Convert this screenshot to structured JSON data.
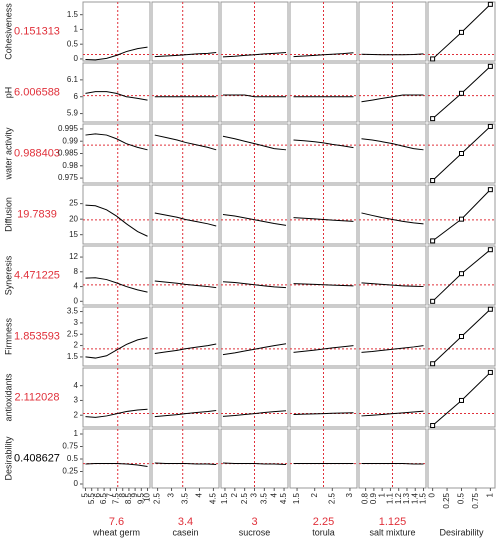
{
  "chart_data": {
    "type": "profiler",
    "highlight_color": "#e0303a",
    "line_color": "#000000",
    "factors": [
      {
        "name": "wheat germ",
        "value": 7.6,
        "xlim": [
          4.8,
          10.2
        ],
        "xticks": [
          5,
          5.5,
          6,
          6.5,
          7,
          7.5,
          8,
          8.5,
          9,
          9.5,
          10
        ],
        "grid": [
          5,
          5.8,
          6.7,
          7.5,
          8.3,
          9.2,
          10
        ]
      },
      {
        "name": "casein",
        "value": 3.4,
        "xlim": [
          2.3,
          4.7
        ],
        "xticks": [
          2.5,
          3,
          3.5,
          4,
          4.5
        ],
        "grid": [
          2.4,
          2.8,
          3.2,
          3.5,
          3.9,
          4.3,
          4.6
        ]
      },
      {
        "name": "sucrose",
        "value": 3,
        "xlim": [
          1.3,
          4.7
        ],
        "xticks": [
          1.5,
          2,
          2.5,
          3,
          3.5,
          4,
          4.5
        ],
        "grid": [
          1.4,
          2,
          2.5,
          3,
          3.5,
          4,
          4.6
        ]
      },
      {
        "name": "torula",
        "value": 2.25,
        "xlim": [
          1.3,
          3.2
        ],
        "xticks": [
          1.5,
          2,
          2.5,
          3
        ],
        "grid": [
          1.4,
          1.7,
          2,
          2.25,
          2.5,
          2.8,
          3.1
        ]
      },
      {
        "name": "salt mixture",
        "value": 1.125,
        "xlim": [
          0.72,
          1.53
        ],
        "xticks": [
          0.8,
          0.9,
          1,
          1.1,
          1.2,
          1.3,
          1.4,
          1.5
        ],
        "grid": [
          0.75,
          0.88,
          1,
          1.125,
          1.25,
          1.38,
          1.5
        ]
      }
    ],
    "desirability_axis": {
      "name": "Desirability",
      "xlim": [
        -0.08,
        1.08
      ],
      "xticks": [
        0,
        0.25,
        0.5,
        0.75,
        1
      ],
      "points": [
        0,
        0.5,
        1
      ]
    },
    "responses": [
      {
        "name": "Cohesiveness",
        "value": 0.151313,
        "value_color": "#e0303a",
        "ylim": [
          -0.07,
          1.93
        ],
        "yticks": [
          0,
          0.5,
          1,
          1.5
        ],
        "curves": [
          [
            -0.02,
            -0.03,
            0.02,
            0.12,
            0.25,
            0.35,
            0.4
          ],
          [
            0.08,
            0.1,
            0.12,
            0.14,
            0.17,
            0.19,
            0.22
          ],
          [
            0.07,
            0.09,
            0.12,
            0.14,
            0.17,
            0.19,
            0.22
          ],
          [
            0.08,
            0.1,
            0.12,
            0.14,
            0.16,
            0.18,
            0.21
          ],
          [
            0.16,
            0.15,
            0.14,
            0.14,
            0.14,
            0.15,
            0.17
          ]
        ],
        "desirability": [
          0,
          0.9,
          1.85
        ]
      },
      {
        "name": "pH",
        "value": 6.006588,
        "value_color": "#e0303a",
        "ylim": [
          5.85,
          6.2
        ],
        "yticks": [
          5.9,
          6,
          6.1
        ],
        "curves": [
          [
            6.02,
            6.03,
            6.03,
            6.02,
            6.0,
            5.99,
            5.98
          ],
          [
            6.0,
            6.0,
            6.0,
            6.0,
            6.0,
            6.0,
            6.0
          ],
          [
            6.01,
            6.01,
            6.01,
            6.0,
            6.0,
            6.0,
            6.0
          ],
          [
            6.0,
            6.0,
            6.0,
            6.0,
            6.0,
            6.0,
            6.0
          ],
          [
            5.97,
            5.98,
            5.99,
            6.0,
            6.01,
            6.01,
            6.01
          ]
        ],
        "desirability": [
          5.87,
          6.02,
          6.18
        ]
      },
      {
        "name": "water activity",
        "value": 0.988403,
        "value_color": "#e0303a",
        "ylim": [
          0.973,
          0.997
        ],
        "yticks": [
          0.975,
          0.98,
          0.985,
          0.99,
          0.995
        ],
        "curves": [
          [
            0.9925,
            0.993,
            0.9925,
            0.991,
            0.989,
            0.9875,
            0.9865
          ],
          [
            0.9925,
            0.9915,
            0.9905,
            0.9895,
            0.9885,
            0.9875,
            0.9865
          ],
          [
            0.992,
            0.991,
            0.99,
            0.989,
            0.988,
            0.987,
            0.9865
          ],
          [
            0.9905,
            0.9902,
            0.9898,
            0.9893,
            0.9887,
            0.9881,
            0.9874
          ],
          [
            0.991,
            0.9905,
            0.9898,
            0.989,
            0.988,
            0.987,
            0.9865
          ]
        ],
        "desirability": [
          0.974,
          0.985,
          0.996
        ]
      },
      {
        "name": "Diffusion",
        "value": 19.7839,
        "value_color": "#e0303a",
        "ylim": [
          12,
          31
        ],
        "yticks": [
          15,
          20,
          25
        ],
        "curves": [
          [
            24.5,
            24.3,
            23,
            21,
            18.5,
            16,
            14.5
          ],
          [
            22,
            21.3,
            20.6,
            19.9,
            19.2,
            18.5,
            17.8
          ],
          [
            21.5,
            21,
            20.4,
            19.8,
            19.2,
            18.6,
            18
          ],
          [
            20.5,
            20.3,
            20.1,
            19.9,
            19.7,
            19.5,
            19.3
          ],
          [
            22,
            21.2,
            20.5,
            19.9,
            19.3,
            18.8,
            18.5
          ]
        ],
        "desirability": [
          13,
          20,
          29.5
        ]
      },
      {
        "name": "Syneresis",
        "value": 4.471225,
        "value_color": "#e0303a",
        "ylim": [
          -1,
          15
        ],
        "yticks": [
          0,
          4,
          8,
          12
        ],
        "curves": [
          [
            6.3,
            6.4,
            5.9,
            5,
            4,
            3.1,
            2.5
          ],
          [
            5.5,
            5.2,
            4.9,
            4.6,
            4.3,
            4,
            3.7
          ],
          [
            5.3,
            5.1,
            4.8,
            4.5,
            4.2,
            3.9,
            3.7
          ],
          [
            4.8,
            4.7,
            4.6,
            4.5,
            4.4,
            4.3,
            4.2
          ],
          [
            5,
            4.8,
            4.6,
            4.4,
            4.2,
            4.1,
            4
          ]
        ],
        "desirability": [
          0,
          7.5,
          14
        ]
      },
      {
        "name": "Firmness",
        "value": 1.853593,
        "value_color": "#e0303a",
        "ylim": [
          1.1,
          3.7
        ],
        "yticks": [
          1.5,
          2,
          2.5,
          3,
          3.5
        ],
        "curves": [
          [
            1.5,
            1.45,
            1.55,
            1.8,
            2.05,
            2.25,
            2.35
          ],
          [
            1.65,
            1.72,
            1.79,
            1.86,
            1.93,
            2,
            2.07
          ],
          [
            1.6,
            1.68,
            1.76,
            1.84,
            1.92,
            2,
            2.08
          ],
          [
            1.7,
            1.75,
            1.8,
            1.85,
            1.9,
            1.95,
            2
          ],
          [
            1.7,
            1.74,
            1.79,
            1.84,
            1.89,
            1.94,
            2
          ]
        ],
        "desirability": [
          1.2,
          2.4,
          3.6
        ]
      },
      {
        "name": "antioxidants",
        "value": 2.112028,
        "value_color": "#e0303a",
        "ylim": [
          1.2,
          5.2
        ],
        "yticks": [
          2,
          3,
          4
        ],
        "curves": [
          [
            1.9,
            1.85,
            1.95,
            2.1,
            2.25,
            2.35,
            2.4
          ],
          [
            1.9,
            1.97,
            2.04,
            2.11,
            2.18,
            2.25,
            2.32
          ],
          [
            1.92,
            1.98,
            2.05,
            2.11,
            2.18,
            2.24,
            2.3
          ],
          [
            2.05,
            2.07,
            2.09,
            2.11,
            2.13,
            2.15,
            2.17
          ],
          [
            1.95,
            2,
            2.05,
            2.11,
            2.16,
            2.22,
            2.28
          ]
        ],
        "desirability": [
          1.3,
          3,
          4.9
        ]
      },
      {
        "name": "Desirability",
        "value": 0.408627,
        "value_color": "#000000",
        "ylim": [
          -0.08,
          1.1
        ],
        "yticks": [
          0,
          0.25,
          0.5,
          0.75,
          1
        ],
        "curves": [
          [
            0.4,
            0.41,
            0.41,
            0.41,
            0.4,
            0.38,
            0.35
          ],
          [
            0.42,
            0.41,
            0.41,
            0.41,
            0.4,
            0.4,
            0.39
          ],
          [
            0.42,
            0.41,
            0.41,
            0.41,
            0.4,
            0.4,
            0.39
          ],
          [
            0.41,
            0.41,
            0.41,
            0.41,
            0.41,
            0.41,
            0.41
          ],
          [
            0.41,
            0.41,
            0.41,
            0.41,
            0.41,
            0.4,
            0.4
          ]
        ]
      }
    ]
  }
}
